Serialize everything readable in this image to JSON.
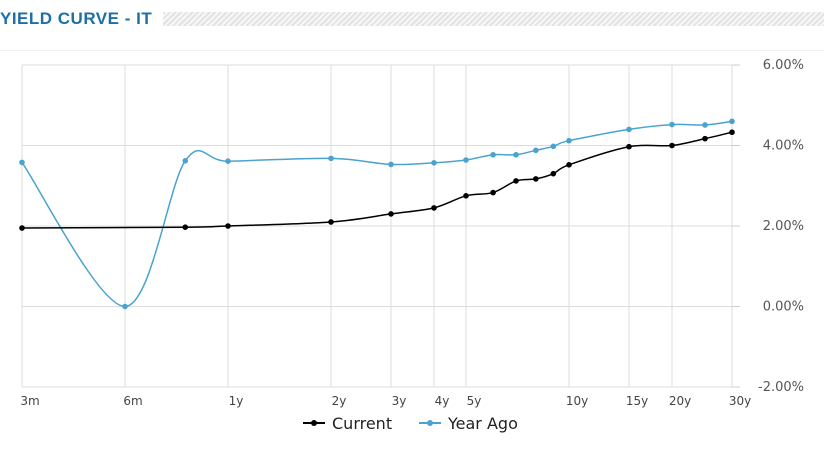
{
  "header": {
    "title": "YIELD CURVE - IT"
  },
  "chart_data": {
    "type": "line",
    "title": "",
    "xlabel": "",
    "ylabel": "",
    "x_scale": "log (maturity)",
    "x_tick_labels": [
      "3m",
      "6m",
      "1y",
      "2y",
      "3y",
      "4y",
      "5y",
      "10y",
      "15y",
      "20y",
      "30y"
    ],
    "y_tick_labels": [
      "6.00%",
      "4.00%",
      "2.00%",
      "0.00%",
      "-2.00%"
    ],
    "y_ticks": [
      6,
      4,
      2,
      0,
      -2
    ],
    "ylim": [
      -2,
      6
    ],
    "y_axis_side": "right",
    "grid": true,
    "legend_position": "bottom-center",
    "series": [
      {
        "name": "Current",
        "color": "#000000",
        "points": [
          {
            "x": 0.25,
            "y": 1.95
          },
          {
            "x": 0.75,
            "y": 1.97
          },
          {
            "x": 1.0,
            "y": 2.0
          },
          {
            "x": 2.0,
            "y": 2.1
          },
          {
            "x": 3.0,
            "y": 2.3
          },
          {
            "x": 4.0,
            "y": 2.45
          },
          {
            "x": 5.0,
            "y": 2.75
          },
          {
            "x": 6.0,
            "y": 2.83
          },
          {
            "x": 7.0,
            "y": 3.12
          },
          {
            "x": 8.0,
            "y": 3.17
          },
          {
            "x": 9.0,
            "y": 3.3
          },
          {
            "x": 10.0,
            "y": 3.52
          },
          {
            "x": 15.0,
            "y": 3.97
          },
          {
            "x": 20.0,
            "y": 4.0
          },
          {
            "x": 25.0,
            "y": 4.17
          },
          {
            "x": 30.0,
            "y": 4.33
          }
        ]
      },
      {
        "name": "Year Ago",
        "color": "#4aa3cf",
        "points": [
          {
            "x": 0.25,
            "y": 3.58
          },
          {
            "x": 0.5,
            "y": 0.0
          },
          {
            "x": 0.75,
            "y": 3.62
          },
          {
            "x": 1.0,
            "y": 3.61
          },
          {
            "x": 2.0,
            "y": 3.68
          },
          {
            "x": 3.0,
            "y": 3.53
          },
          {
            "x": 4.0,
            "y": 3.57
          },
          {
            "x": 5.0,
            "y": 3.64
          },
          {
            "x": 6.0,
            "y": 3.77
          },
          {
            "x": 7.0,
            "y": 3.77
          },
          {
            "x": 8.0,
            "y": 3.88
          },
          {
            "x": 9.0,
            "y": 3.98
          },
          {
            "x": 10.0,
            "y": 4.12
          },
          {
            "x": 15.0,
            "y": 4.4
          },
          {
            "x": 20.0,
            "y": 4.52
          },
          {
            "x": 25.0,
            "y": 4.51
          },
          {
            "x": 30.0,
            "y": 4.6
          }
        ]
      }
    ]
  }
}
